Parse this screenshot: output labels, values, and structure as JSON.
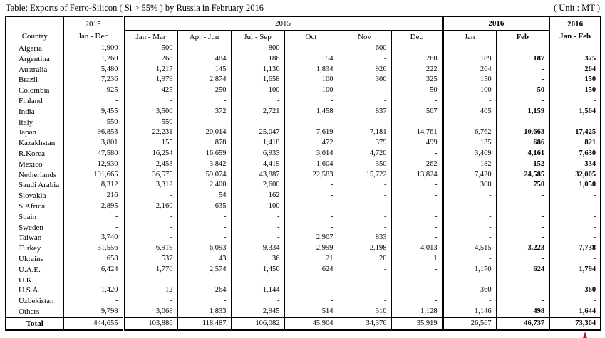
{
  "title": "Table: Exports of Ferro-Silicon ( Si > 55% ) by Russia in February 2016",
  "unit": "( Unit : MT )",
  "header": {
    "country": "Country",
    "y2015_single": "2015",
    "y2015_single_range": "Jan - Dec",
    "y2015_group": "2015",
    "months_2015": [
      "Jan - Mar",
      "Apr - Jun",
      "Jul - Sep",
      "Oct",
      "Nov",
      "Dec"
    ],
    "y2016_group": "2016",
    "months_2016": [
      "Jan",
      "Feb"
    ],
    "y2016_total": "2016",
    "y2016_total_range": "Jan - Feb"
  },
  "chart_data": {
    "type": "table",
    "title": "Exports of Ferro-Silicon ( Si > 55% ) by Russia in February 2016",
    "unit": "MT",
    "columns": [
      "Country",
      "2015 Jan - Dec",
      "2015 Jan - Mar",
      "2015 Apr - Jun",
      "2015 Jul - Sep",
      "2015 Oct",
      "2015 Nov",
      "2015 Dec",
      "2016 Jan",
      "2016 Feb",
      "2016 Jan - Feb"
    ],
    "rows": [
      {
        "country": "Algeria",
        "values": [
          "1,900",
          "500",
          "-",
          "800",
          "-",
          "600",
          "-",
          "-",
          "-",
          "-"
        ]
      },
      {
        "country": "Argentina",
        "values": [
          "1,260",
          "268",
          "484",
          "186",
          "54",
          "-",
          "268",
          "189",
          "187",
          "375"
        ]
      },
      {
        "country": "Australia",
        "values": [
          "5,480",
          "1,217",
          "145",
          "1,136",
          "1,834",
          "926",
          "222",
          "264",
          "-",
          "264"
        ]
      },
      {
        "country": "Brazil",
        "values": [
          "7,236",
          "1,979",
          "2,874",
          "1,658",
          "100",
          "300",
          "325",
          "150",
          "-",
          "150"
        ]
      },
      {
        "country": "Colombia",
        "values": [
          "925",
          "425",
          "250",
          "100",
          "100",
          "-",
          "50",
          "100",
          "50",
          "150"
        ]
      },
      {
        "country": "Finland",
        "values": [
          "-",
          "-",
          "-",
          "-",
          "-",
          "-",
          "-",
          "-",
          "-",
          "-"
        ]
      },
      {
        "country": "India",
        "values": [
          "9,455",
          "3,500",
          "372",
          "2,721",
          "1,458",
          "837",
          "567",
          "405",
          "1,159",
          "1,564"
        ]
      },
      {
        "country": "Italy",
        "values": [
          "550",
          "550",
          "-",
          "-",
          "-",
          "-",
          "-",
          "-",
          "-",
          "-"
        ]
      },
      {
        "country": "Japan",
        "values": [
          "96,853",
          "22,231",
          "20,014",
          "25,047",
          "7,619",
          "7,181",
          "14,761",
          "6,762",
          "10,663",
          "17,425"
        ]
      },
      {
        "country": "Kazakhstan",
        "values": [
          "3,801",
          "155",
          "878",
          "1,418",
          "472",
          "379",
          "499",
          "135",
          "686",
          "821"
        ]
      },
      {
        "country": "R.Korea",
        "values": [
          "47,580",
          "16,254",
          "16,659",
          "6,933",
          "3,014",
          "4,720",
          "-",
          "3,469",
          "4,161",
          "7,630"
        ]
      },
      {
        "country": "Mexico",
        "values": [
          "12,930",
          "2,453",
          "3,842",
          "4,419",
          "1,604",
          "350",
          "262",
          "182",
          "152",
          "334"
        ]
      },
      {
        "country": "Netherlands",
        "values": [
          "191,665",
          "36,575",
          "59,074",
          "43,887",
          "22,583",
          "15,722",
          "13,824",
          "7,420",
          "24,585",
          "32,005"
        ]
      },
      {
        "country": "Saudi Arabia",
        "values": [
          "8,312",
          "3,312",
          "2,400",
          "2,600",
          "-",
          "-",
          "-",
          "300",
          "750",
          "1,050"
        ]
      },
      {
        "country": "Slovakia",
        "values": [
          "216",
          "-",
          "54",
          "162",
          "-",
          "-",
          "-",
          "-",
          "-",
          "-"
        ]
      },
      {
        "country": "S.Africa",
        "values": [
          "2,895",
          "2,160",
          "635",
          "100",
          "-",
          "-",
          "-",
          "-",
          "-",
          "-"
        ]
      },
      {
        "country": "Spain",
        "values": [
          "-",
          "-",
          "-",
          "-",
          "-",
          "-",
          "-",
          "-",
          "-",
          "-"
        ]
      },
      {
        "country": "Sweden",
        "values": [
          "-",
          "-",
          "-",
          "-",
          "-",
          "-",
          "-",
          "-",
          "-",
          "-"
        ]
      },
      {
        "country": "Taiwan",
        "values": [
          "3,740",
          "-",
          "-",
          "-",
          "2,907",
          "833",
          "-",
          "-",
          "-",
          "-"
        ]
      },
      {
        "country": "Turkey",
        "values": [
          "31,556",
          "6,919",
          "6,093",
          "9,334",
          "2,999",
          "2,198",
          "4,013",
          "4,515",
          "3,223",
          "7,738"
        ]
      },
      {
        "country": "Ukraine",
        "values": [
          "658",
          "537",
          "43",
          "36",
          "21",
          "20",
          "1",
          "-",
          "-",
          "-"
        ]
      },
      {
        "country": "U.A.E.",
        "values": [
          "6,424",
          "1,770",
          "2,574",
          "1,456",
          "624",
          "-",
          "-",
          "1,170",
          "624",
          "1,794"
        ]
      },
      {
        "country": "U.K.",
        "values": [
          "-",
          "-",
          "-",
          "-",
          "-",
          "-",
          "-",
          "-",
          "-",
          "-"
        ]
      },
      {
        "country": "U.S.A.",
        "values": [
          "1,420",
          "12",
          "264",
          "1,144",
          "-",
          "-",
          "-",
          "360",
          "-",
          "360"
        ]
      },
      {
        "country": "Uzbekistan",
        "values": [
          "-",
          "-",
          "-",
          "-",
          "-",
          "-",
          "-",
          "-",
          "-",
          "-"
        ]
      },
      {
        "country": "Others",
        "values": [
          "9,798",
          "3,068",
          "1,833",
          "2,945",
          "514",
          "310",
          "1,128",
          "1,146",
          "498",
          "1,644"
        ]
      }
    ],
    "total": {
      "label": "Total",
      "values": [
        "444,655",
        "103,886",
        "118,487",
        "106,082",
        "45,904",
        "34,376",
        "35,919",
        "26,567",
        "46,737",
        "73,304"
      ]
    },
    "colors": {
      "text": "#000000",
      "border": "#000000",
      "background": "#ffffff",
      "marker": "#cc1111"
    }
  }
}
